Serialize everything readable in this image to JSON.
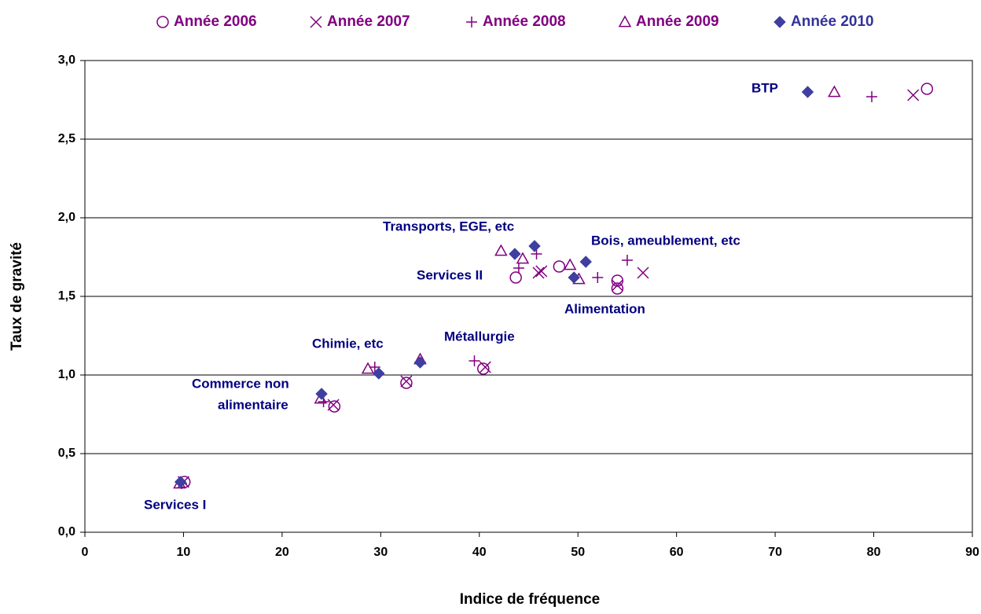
{
  "chart_data": {
    "type": "scatter",
    "xlabel": "Indice de fréquence",
    "ylabel": "Taux de gravité",
    "xlim": [
      0,
      90
    ],
    "xticks": [
      0,
      10,
      20,
      30,
      40,
      50,
      60,
      70,
      80,
      90
    ],
    "ylim": [
      0,
      3
    ],
    "yticks": [
      {
        "value": 0,
        "label": "0,0"
      },
      {
        "value": 0.5,
        "label": "0,5"
      },
      {
        "value": 1,
        "label": "1,0"
      },
      {
        "value": 1.5,
        "label": "1,5"
      },
      {
        "value": 2,
        "label": "2,0"
      },
      {
        "value": 2.5,
        "label": "2,5"
      },
      {
        "value": 3,
        "label": "3,0"
      }
    ],
    "grid": true,
    "legend": "top",
    "series": [
      {
        "name": "Année 2006",
        "marker": "circle",
        "color": "#800080",
        "x": [
          10.1,
          25.3,
          32.6,
          40.4,
          43.7,
          48.1,
          54.0,
          54.0,
          85.4
        ],
        "values": [
          0.32,
          0.8,
          0.95,
          1.04,
          1.62,
          1.69,
          1.6,
          1.55,
          2.82
        ]
      },
      {
        "name": "Année 2007",
        "marker": "x",
        "color": "#800080",
        "x": [
          10.0,
          25.2,
          32.6,
          40.6,
          46.3,
          46.0,
          56.6,
          54.0,
          84.0
        ],
        "values": [
          0.32,
          0.81,
          0.96,
          1.05,
          1.66,
          1.65,
          1.65,
          1.57,
          2.78
        ]
      },
      {
        "name": "Année 2008",
        "marker": "plus",
        "color": "#800080",
        "x": [
          9.8,
          24.2,
          29.4,
          39.5,
          44.0,
          45.8,
          55.0,
          52.0,
          79.8
        ],
        "values": [
          0.31,
          0.83,
          1.05,
          1.09,
          1.68,
          1.77,
          1.73,
          1.62,
          2.77
        ]
      },
      {
        "name": "Année 2009",
        "marker": "triangle",
        "color": "#800080",
        "x": [
          9.6,
          23.9,
          28.7,
          34.0,
          42.2,
          44.4,
          49.2,
          50.1,
          76.0
        ],
        "values": [
          0.31,
          0.85,
          1.04,
          1.1,
          1.79,
          1.74,
          1.7,
          1.61,
          2.8
        ]
      },
      {
        "name": "Année 2010",
        "marker": "diamond",
        "color": "#3f3fa0",
        "x": [
          9.7,
          24.0,
          29.8,
          34.0,
          43.6,
          45.6,
          50.8,
          49.6,
          73.3
        ],
        "values": [
          0.32,
          0.88,
          1.01,
          1.08,
          1.77,
          1.82,
          1.72,
          1.62,
          2.8
        ]
      }
    ],
    "annotations": [
      "Services I",
      "Commerce non",
      "alimentaire",
      "Chimie, etc",
      "Métallurgie",
      "Services II",
      "Transports, EGE, etc",
      "Bois, ameublement, etc",
      "Alimentation",
      "BTP"
    ]
  }
}
